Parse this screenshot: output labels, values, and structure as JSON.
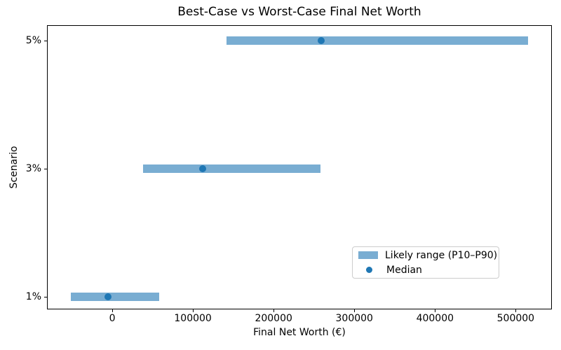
{
  "chart_data": {
    "type": "bar",
    "orientation": "horizontal",
    "title": "Best-Case vs Worst-Case Final Net Worth",
    "xlabel": "Final Net Worth (€)",
    "ylabel": "Scenario",
    "categories": [
      "1%",
      "3%",
      "5%"
    ],
    "series": [
      {
        "name": "Likely range (P10–P90)",
        "type": "range",
        "p10": [
          -51000,
          38000,
          142000
        ],
        "p90": [
          58000,
          258000,
          515000
        ]
      },
      {
        "name": "Median",
        "type": "scatter",
        "values": [
          -5000,
          112000,
          259000
        ]
      }
    ],
    "xticks": [
      0,
      100000,
      200000,
      300000,
      400000,
      500000
    ],
    "xtick_labels": [
      "0",
      "100000",
      "200000",
      "300000",
      "400000",
      "500000"
    ],
    "xlim": [
      -80000,
      544000
    ],
    "grid": false,
    "legend_position": "lower right",
    "colors": {
      "range_fill": "#1f77b4",
      "range_alpha": 0.6,
      "median_dot": "#1f77b4",
      "axis": "#000000",
      "legend_border": "#cccccc"
    }
  }
}
